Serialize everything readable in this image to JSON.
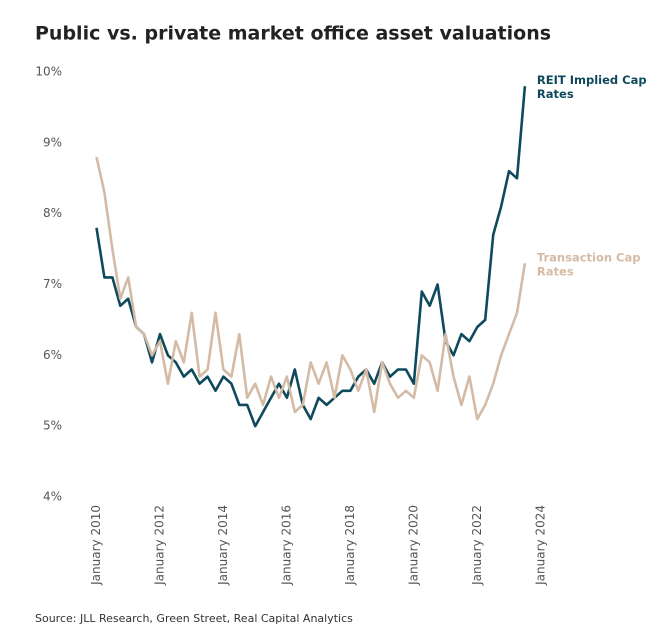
{
  "chart_data": {
    "type": "line",
    "title": "Public vs. private market office asset valuations",
    "source": "Source: JLL Research, Green Street, Real Capital Analytics",
    "x": [
      "2010-01",
      "2010-04",
      "2010-07",
      "2010-10",
      "2011-01",
      "2011-04",
      "2011-07",
      "2011-10",
      "2012-01",
      "2012-04",
      "2012-07",
      "2012-10",
      "2013-01",
      "2013-04",
      "2013-07",
      "2013-10",
      "2014-01",
      "2014-04",
      "2014-07",
      "2014-10",
      "2015-01",
      "2015-04",
      "2015-07",
      "2015-10",
      "2016-01",
      "2016-04",
      "2016-07",
      "2016-10",
      "2017-01",
      "2017-04",
      "2017-07",
      "2017-10",
      "2018-01",
      "2018-04",
      "2018-07",
      "2018-10",
      "2019-01",
      "2019-04",
      "2019-07",
      "2019-10",
      "2020-01",
      "2020-04",
      "2020-07",
      "2020-10",
      "2021-01",
      "2021-04",
      "2021-07",
      "2021-10",
      "2022-01",
      "2022-04",
      "2022-07",
      "2022-10",
      "2023-01",
      "2023-04",
      "2023-07"
    ],
    "series": [
      {
        "name": "REIT Implied Cap Rates",
        "color": "#0e4a5c",
        "values": [
          7.8,
          7.1,
          7.1,
          6.7,
          6.8,
          6.4,
          6.3,
          5.9,
          6.3,
          6.0,
          5.9,
          5.7,
          5.8,
          5.6,
          5.7,
          5.5,
          5.7,
          5.6,
          5.3,
          5.3,
          5.0,
          5.2,
          5.4,
          5.6,
          5.4,
          5.8,
          5.3,
          5.1,
          5.4,
          5.3,
          5.4,
          5.5,
          5.5,
          5.7,
          5.8,
          5.6,
          5.9,
          5.7,
          5.8,
          5.8,
          5.6,
          6.9,
          6.7,
          7.0,
          6.2,
          6.0,
          6.3,
          6.2,
          6.4,
          6.5,
          7.7,
          8.1,
          8.6,
          8.5,
          9.8
        ]
      },
      {
        "name": "Transaction Cap Rates",
        "color": "#d4bba6",
        "values": [
          8.8,
          8.3,
          7.5,
          6.8,
          7.1,
          6.4,
          6.3,
          6.0,
          6.2,
          5.6,
          6.2,
          5.9,
          6.6,
          5.7,
          5.8,
          6.6,
          5.8,
          5.7,
          6.3,
          5.4,
          5.6,
          5.3,
          5.7,
          5.4,
          5.7,
          5.2,
          5.3,
          5.9,
          5.6,
          5.9,
          5.4,
          6.0,
          5.8,
          5.5,
          5.8,
          5.2,
          5.9,
          5.6,
          5.4,
          5.5,
          5.4,
          6.0,
          5.9,
          5.5,
          6.3,
          5.7,
          5.3,
          5.7,
          5.1,
          5.3,
          5.6,
          6.0,
          6.3,
          6.6,
          7.3
        ]
      }
    ],
    "xlim": [
      "2009-06",
      "2024-06"
    ],
    "xticks": [
      {
        "value": "2010-01",
        "label": "January 2010"
      },
      {
        "value": "2012-01",
        "label": "January 2012"
      },
      {
        "value": "2014-01",
        "label": "January 2014"
      },
      {
        "value": "2016-01",
        "label": "January 2016"
      },
      {
        "value": "2018-01",
        "label": "January 2018"
      },
      {
        "value": "2020-01",
        "label": "January 2020"
      },
      {
        "value": "2022-01",
        "label": "January 2022"
      },
      {
        "value": "2024-01",
        "label": "January 2024"
      }
    ],
    "ylim": [
      4,
      10
    ],
    "yticks": [
      {
        "value": 4,
        "label": "4%"
      },
      {
        "value": 5,
        "label": "5%"
      },
      {
        "value": 6,
        "label": "6%"
      },
      {
        "value": 7,
        "label": "7%"
      },
      {
        "value": 8,
        "label": "8%"
      },
      {
        "value": 9,
        "label": "9%"
      },
      {
        "value": 10,
        "label": "10%"
      }
    ]
  }
}
